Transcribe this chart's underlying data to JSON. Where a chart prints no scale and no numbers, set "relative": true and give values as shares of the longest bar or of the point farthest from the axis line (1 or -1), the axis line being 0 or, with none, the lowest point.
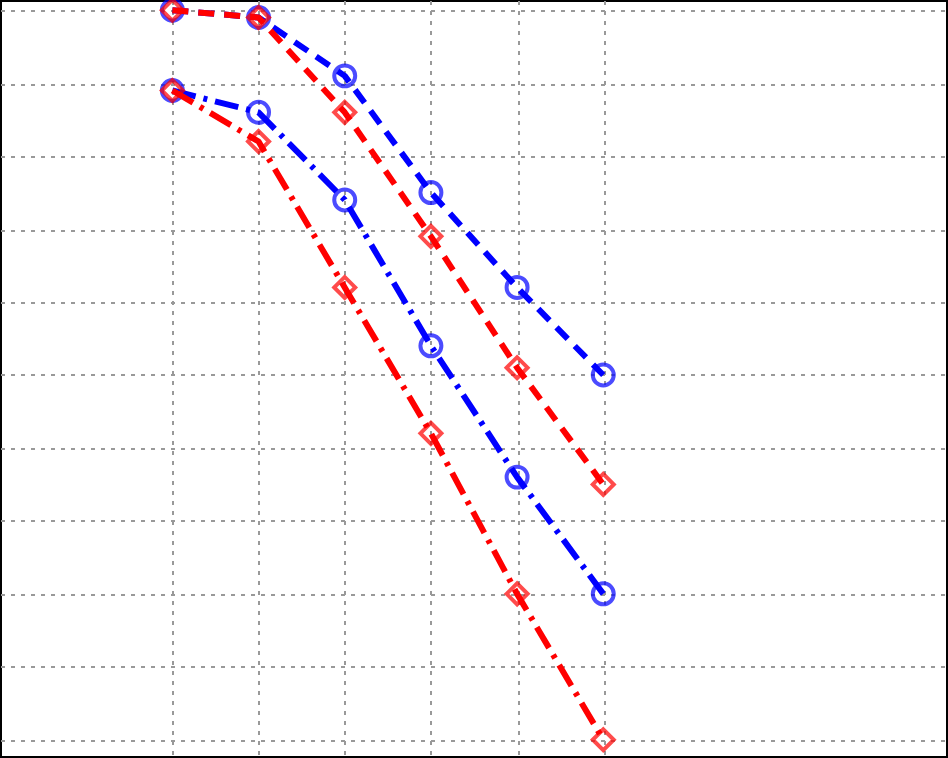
{
  "chart_data": {
    "type": "line",
    "relative": true,
    "categories": [
      null,
      null,
      null,
      null,
      null,
      null
    ],
    "grid": true,
    "series": [
      {
        "color": "#0000ff",
        "marker": "circle",
        "line_style": "dashed",
        "values": [
          1,
          0.99,
          0.91,
          0.75,
          0.62,
          0.5
        ]
      },
      {
        "color": "#ff0000",
        "marker": "diamond",
        "line_style": "dashed",
        "values": [
          1,
          0.99,
          0.86,
          0.69,
          0.51,
          0.35
        ]
      },
      {
        "color": "#0000ff",
        "marker": "circle",
        "line_style": "dashdot",
        "values": [
          0.89,
          0.86,
          0.74,
          0.54,
          0.36,
          0.2
        ]
      },
      {
        "color": "#ff0000",
        "marker": "diamond",
        "line_style": "dashdot",
        "values": [
          0.89,
          0.82,
          0.62,
          0.42,
          0.2,
          0
        ]
      }
    ]
  }
}
